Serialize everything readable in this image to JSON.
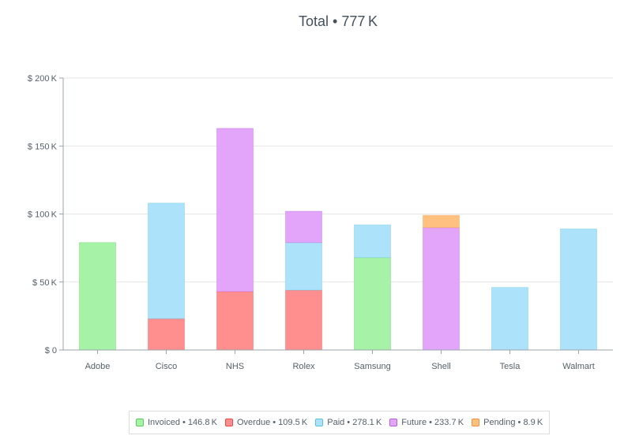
{
  "chart_data": {
    "type": "bar",
    "stacked": true,
    "title": "Total • 777 K",
    "categories": [
      "Adobe",
      "Cisco",
      "NHS",
      "Rolex",
      "Samsung",
      "Shell",
      "Tesla",
      "Walmart"
    ],
    "ylim": [
      0,
      200
    ],
    "y_ticks": [
      {
        "value": 0,
        "label": "$ 0"
      },
      {
        "value": 50,
        "label": "$ 50 K"
      },
      {
        "value": 100,
        "label": "$ 100 K"
      },
      {
        "value": 150,
        "label": "$ 150 K"
      },
      {
        "value": 200,
        "label": "$ 200 K"
      }
    ],
    "grid": true,
    "legend_position": "bottom",
    "series": [
      {
        "name": "Invoiced",
        "legend_label": "Invoiced • 146.8 K",
        "color": "#a6f2a6",
        "border": "#5ccc5c",
        "values": [
          79,
          0,
          0,
          0,
          68,
          0,
          0,
          0
        ]
      },
      {
        "name": "Overdue",
        "legend_label": "Overdue • 109.5 K",
        "color": "#ff8f8f",
        "border": "#ee4444",
        "values": [
          0,
          23,
          43,
          44,
          0,
          0,
          0,
          0
        ]
      },
      {
        "name": "Paid",
        "legend_label": "Paid • 278.1 K",
        "color": "#ade3fa",
        "border": "#5cbfe6",
        "values": [
          0,
          85,
          0,
          35,
          24,
          0,
          46,
          89
        ]
      },
      {
        "name": "Future",
        "legend_label": "Future • 233.7 K",
        "color": "#e2a5fa",
        "border": "#bb5ee0",
        "values": [
          0,
          0,
          120,
          23,
          0,
          90,
          0,
          0
        ]
      },
      {
        "name": "Pending",
        "legend_label": "Pending • 8.9 K",
        "color": "#ffc080",
        "border": "#f0913a",
        "values": [
          0,
          0,
          0,
          0,
          0,
          9,
          0,
          0
        ]
      }
    ]
  }
}
